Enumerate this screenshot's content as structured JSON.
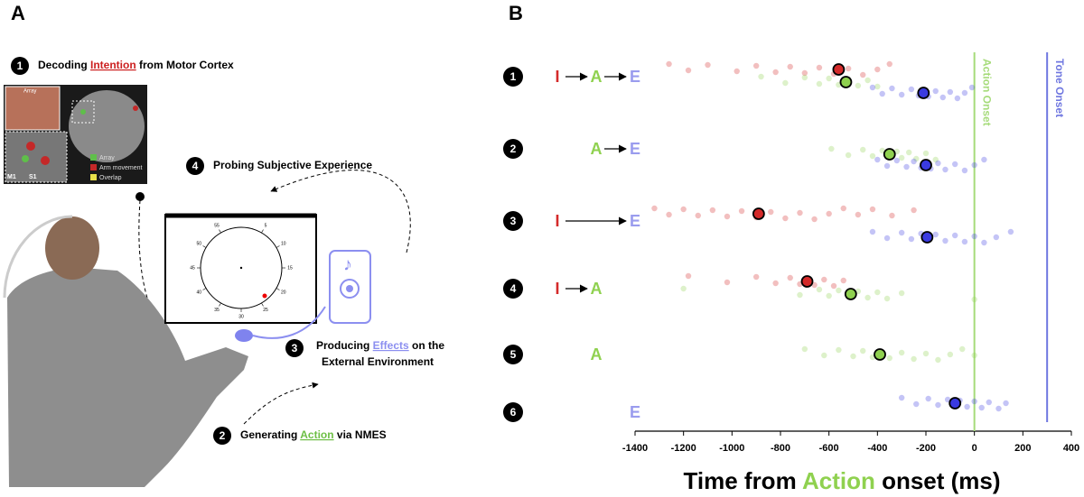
{
  "panel_a": {
    "label": "A",
    "steps": [
      {
        "number": "1",
        "lines": [
          [
            "Decoding ",
            "Intention",
            " from Motor Cortex"
          ]
        ],
        "color": "#cc1f1f"
      },
      {
        "number": "4",
        "lines": [
          [
            "Probing Subjective Experience"
          ]
        ]
      },
      {
        "number": "3",
        "lines": [
          [
            "Producing ",
            "Effects",
            " on the"
          ],
          [
            "External Environment"
          ]
        ],
        "color": "#8c8ff0"
      },
      {
        "number": "2",
        "lines": [
          [
            "Generating ",
            "Action",
            " via NMES"
          ]
        ],
        "color": "#6dbf45"
      }
    ],
    "image_labels": {
      "inset": "Array",
      "legend": [
        {
          "text": "Array",
          "color": "#5fbf4a"
        },
        {
          "text": "Arm movement",
          "color": "#c42828"
        },
        {
          "text": "Overlap",
          "color": "#e8e04a"
        }
      ],
      "regions": [
        "M1",
        "S1"
      ]
    },
    "clock_numbers": [
      "5",
      "10",
      "15",
      "20",
      "25",
      "30",
      "35",
      "40",
      "45",
      "50",
      "55"
    ]
  },
  "chart_data": {
    "type": "scatter",
    "label": "B",
    "xlabel": [
      "Time from ",
      "Action",
      " onset (ms)"
    ],
    "xlabel_color": "#8fd14f",
    "xlim": [
      -1400,
      400
    ],
    "xticks": [
      -1400,
      -1200,
      -1000,
      -800,
      -600,
      -400,
      -200,
      0,
      200,
      400
    ],
    "vlines": [
      {
        "x": 0,
        "label": "Action Onset",
        "color": "#a6db7a"
      },
      {
        "x": 300,
        "label": "Tone Onset",
        "color": "#6f77e0"
      }
    ],
    "rows": [
      {
        "number": "1",
        "marks": [
          {
            "letter": "I",
            "color": "#d42a2a",
            "mean": -560,
            "points": [
              -1260,
              -1180,
              -1100,
              -980,
              -900,
              -820,
              -760,
              -700,
              -640,
              -580,
              -520,
              -460,
              -400,
              -350
            ]
          },
          {
            "letter": "A",
            "color": "#8fd14f",
            "mean": -530,
            "points": [
              -880,
              -780,
              -700,
              -640,
              -600,
              -560,
              -520,
              -480,
              -440,
              -400
            ]
          },
          {
            "letter": "E",
            "color": "#3a3ae0",
            "mean": -210,
            "points": [
              -420,
              -380,
              -340,
              -300,
              -260,
              -230,
              -210,
              -190,
              -160,
              -130,
              -100,
              -70,
              -40,
              -10
            ]
          }
        ]
      },
      {
        "number": "2",
        "marks": [
          {
            "letter": "A",
            "color": "#8fd14f",
            "mean": -350,
            "points": [
              -590,
              -520,
              -460,
              -420,
              -380,
              -350,
              -320,
              -300,
              -270,
              -240,
              -200,
              -160
            ]
          },
          {
            "letter": "E",
            "color": "#3a3ae0",
            "mean": -200,
            "points": [
              -400,
              -360,
              -320,
              -280,
              -250,
              -220,
              -200,
              -180,
              -150,
              -120,
              -80,
              -40,
              0,
              40
            ]
          }
        ]
      },
      {
        "number": "3",
        "marks": [
          {
            "letter": "I",
            "color": "#d42a2a",
            "mean": -890,
            "points": [
              -1320,
              -1260,
              -1200,
              -1140,
              -1080,
              -1020,
              -960,
              -900,
              -840,
              -780,
              -720,
              -660,
              -600,
              -540,
              -480,
              -420,
              -340,
              -250
            ]
          },
          {
            "letter": "E",
            "color": "#3a3ae0",
            "mean": -195,
            "points": [
              -420,
              -360,
              -300,
              -260,
              -220,
              -190,
              -160,
              -120,
              -80,
              -40,
              0,
              40,
              90,
              150
            ]
          }
        ]
      },
      {
        "number": "4",
        "marks": [
          {
            "letter": "I",
            "color": "#d42a2a",
            "mean": -690,
            "points": [
              -1180,
              -1020,
              -900,
              -820,
              -760,
              -720,
              -690,
              -660,
              -620,
              -580,
              -540
            ]
          },
          {
            "letter": "A",
            "color": "#8fd14f",
            "mean": -510,
            "points": [
              -1200,
              -720,
              -640,
              -600,
              -560,
              -520,
              -480,
              -440,
              -400,
              -360,
              -300,
              0
            ]
          }
        ]
      },
      {
        "number": "5",
        "marks": [
          {
            "letter": "A",
            "color": "#8fd14f",
            "mean": -390,
            "points": [
              -700,
              -620,
              -560,
              -500,
              -460,
              -420,
              -390,
              -350,
              -300,
              -250,
              -200,
              -150,
              -100,
              -50,
              0
            ]
          }
        ]
      },
      {
        "number": "6",
        "marks": [
          {
            "letter": "E",
            "color": "#3a3ae0",
            "mean": -80,
            "points": [
              -300,
              -240,
              -190,
              -150,
              -110,
              -80,
              -60,
              -30,
              0,
              30,
              60,
              100,
              130
            ]
          }
        ]
      }
    ]
  }
}
